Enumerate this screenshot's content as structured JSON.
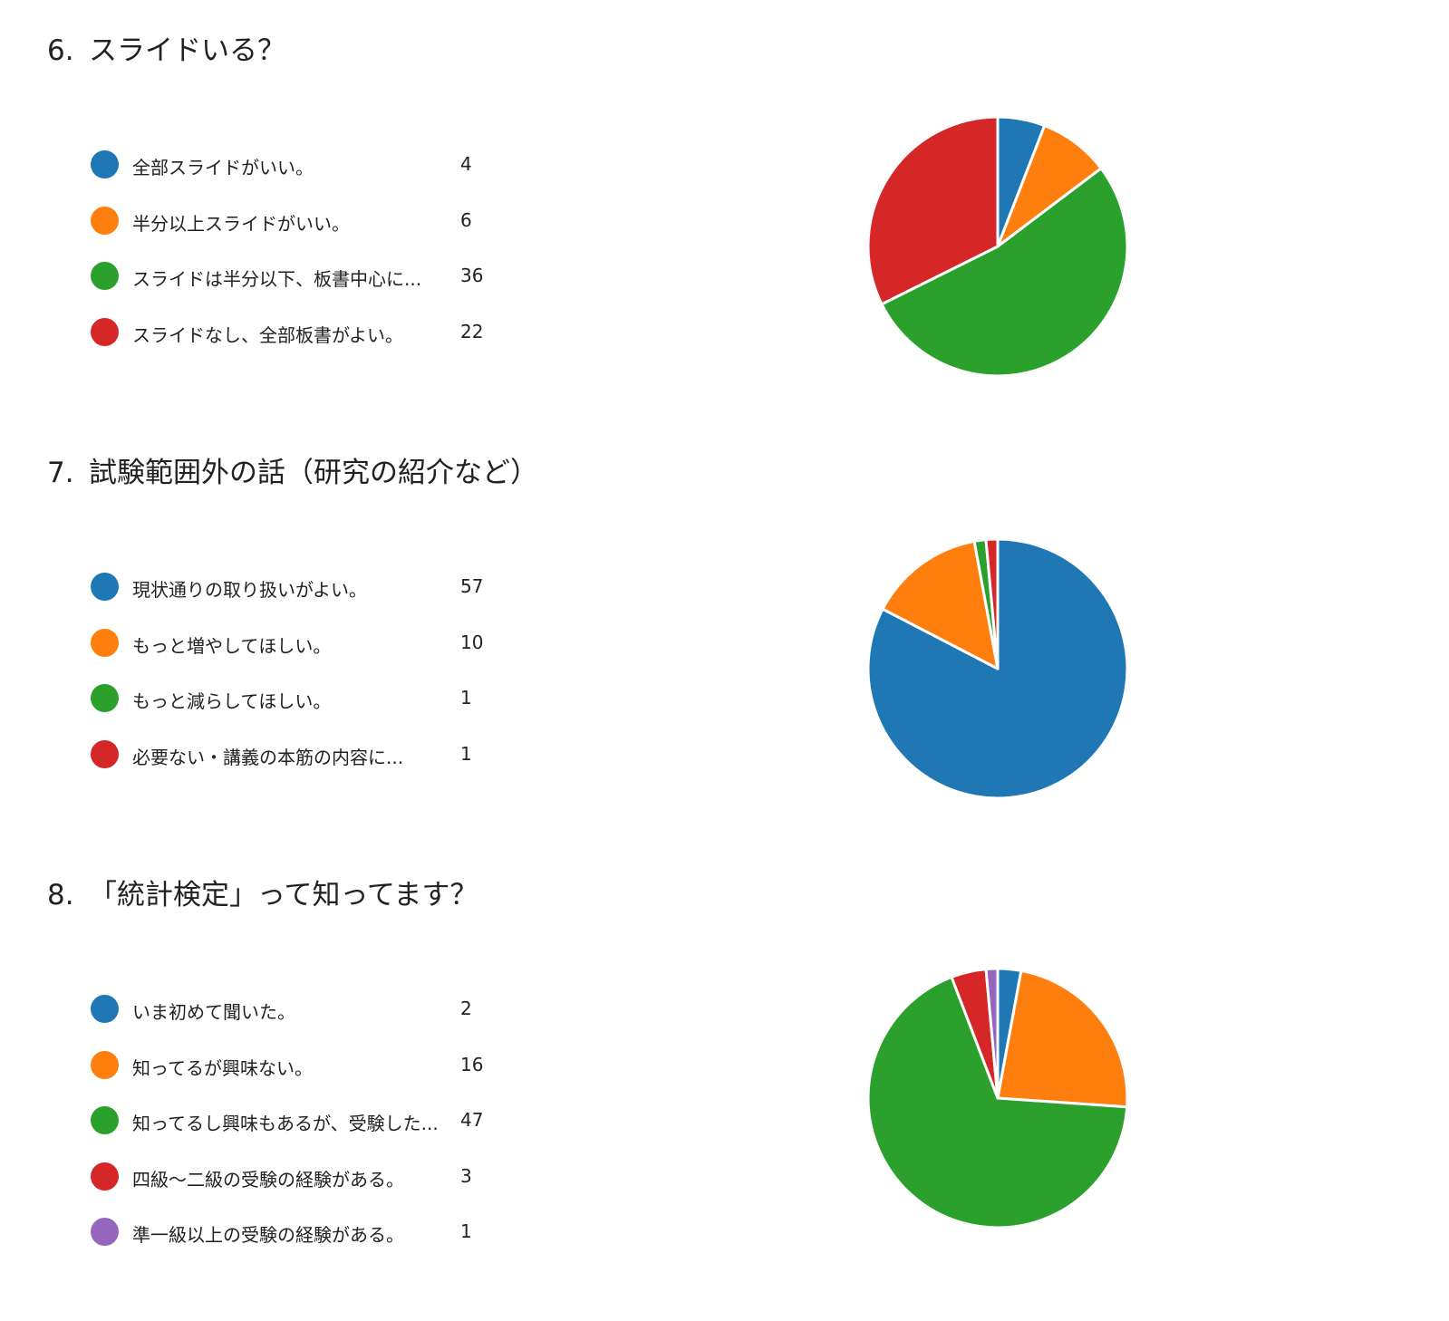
{
  "colors": [
    "#1f77b4",
    "#ff7f0e",
    "#2ca02c",
    "#d62728",
    "#9467bd"
  ],
  "chart_data": [
    {
      "type": "pie",
      "number": "6.",
      "title": "スライドいる？",
      "legend_placement": "left",
      "categories": [
        "全部スライドがいい。",
        "半分以上スライドがいい。",
        "スライドは半分以下、板書中心に...",
        "スライドなし、全部板書がよい。"
      ],
      "values": [
        4,
        6,
        36,
        22
      ]
    },
    {
      "type": "pie",
      "number": "7.",
      "title": "試験範囲外の話（研究の紹介など）",
      "legend_placement": "left",
      "categories": [
        "現状通りの取り扱いがよい。",
        "もっと増やしてほしい。",
        "もっと減らしてほしい。",
        "必要ない・講義の本筋の内容に..."
      ],
      "values": [
        57,
        10,
        1,
        1
      ]
    },
    {
      "type": "pie",
      "number": "8.",
      "title": "「統計検定」って知ってます？",
      "legend_placement": "left",
      "categories": [
        "いま初めて聞いた。",
        "知ってるが興味ない。",
        "知ってるし興味もあるが、受験した...",
        "四級～二級の受験の経験がある。",
        "準一級以上の受験の経験がある。"
      ],
      "values": [
        2,
        16,
        47,
        3,
        1
      ]
    }
  ]
}
